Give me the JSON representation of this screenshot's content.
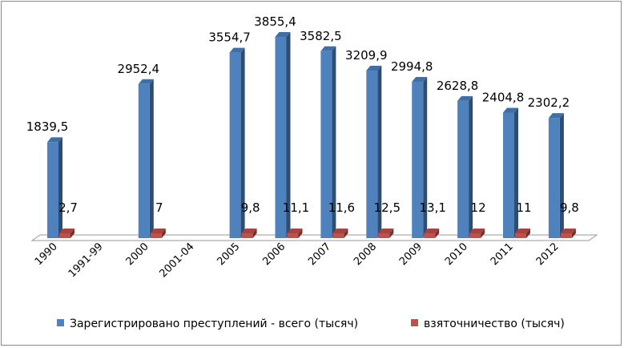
{
  "chart_data": {
    "type": "bar",
    "categories": [
      "1990",
      "1991-99",
      "2000",
      "2001-04",
      "2005",
      "2006",
      "2007",
      "2008",
      "2009",
      "2010",
      "2011",
      "2012"
    ],
    "series": [
      {
        "name": "Зарегистрировано преступлений - всего (тысяч)",
        "values": [
          1839.5,
          null,
          2952.4,
          null,
          3554.7,
          3855.4,
          3582.5,
          3209.9,
          2994.8,
          2628.8,
          2404.8,
          2302.2
        ],
        "labels": [
          "1839,5",
          "",
          "2952,4",
          "",
          "3554,7",
          "3855,4",
          "3582,5",
          "3209,9",
          "2994,8",
          "2628,8",
          "2404,8",
          "2302,2"
        ],
        "color": "#4F81BD"
      },
      {
        "name": "взяточничество (тысяч)",
        "values": [
          2.7,
          null,
          7,
          null,
          9.8,
          11.1,
          11.6,
          12.5,
          13.1,
          12,
          11,
          9.8
        ],
        "labels": [
          "2,7",
          "",
          "7",
          "",
          "9,8",
          "11,1",
          "11,6",
          "12,5",
          "13,1",
          "12",
          "11",
          "9,8"
        ],
        "color": "#C0504D"
      }
    ],
    "legend_position": "bottom",
    "grid": false
  }
}
